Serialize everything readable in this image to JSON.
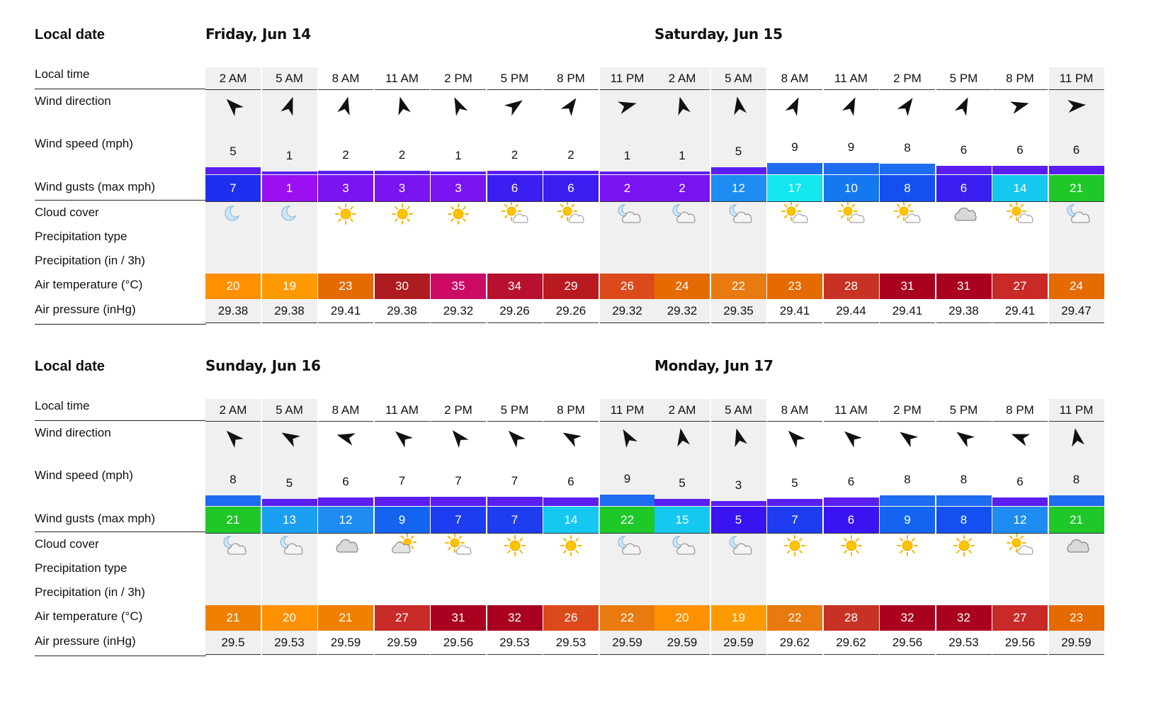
{
  "row_labels": {
    "local_date": "Local date",
    "local_time": "Local time",
    "wind_direction": "Wind direction",
    "wind_speed": "Wind speed (mph)",
    "wind_gusts": "Wind gusts (max mph)",
    "cloud_cover": "Cloud cover",
    "precip_type": "Precipitation type",
    "precip_amount": "Precipitation (in / 3h)",
    "air_temp": "Air temperature (°C)",
    "air_pressure": "Air pressure (inHg)"
  },
  "days": [
    {
      "title": "Friday, Jun 14",
      "columns": [
        {
          "time": "2 AM",
          "night": true,
          "wind_dir_deg": -45,
          "speed": 5,
          "gust": 7,
          "gust_color": "#1e2ff0",
          "cloud": "moon",
          "temp": 20,
          "temp_color": "#ff9000",
          "pressure": "29.38"
        },
        {
          "time": "5 AM",
          "night": true,
          "wind_dir_deg": 20,
          "speed": 1,
          "gust": 1,
          "gust_color": "#9b0ff0",
          "cloud": "moon",
          "temp": 19,
          "temp_color": "#ff9a00",
          "pressure": "29.38"
        },
        {
          "time": "8 AM",
          "night": false,
          "wind_dir_deg": 15,
          "speed": 2,
          "gust": 3,
          "gust_color": "#7a14f0",
          "cloud": "sun",
          "temp": 23,
          "temp_color": "#e56a00",
          "pressure": "29.41"
        },
        {
          "time": "11 AM",
          "night": false,
          "wind_dir_deg": -15,
          "speed": 2,
          "gust": 3,
          "gust_color": "#7a14f0",
          "cloud": "sun",
          "temp": 30,
          "temp_color": "#ad1a1f",
          "pressure": "29.38"
        },
        {
          "time": "2 PM",
          "night": false,
          "wind_dir_deg": -25,
          "speed": 1,
          "gust": 3,
          "gust_color": "#7a14f0",
          "cloud": "sun",
          "temp": 35,
          "temp_color": "#cc0a66",
          "pressure": "29.32"
        },
        {
          "time": "5 PM",
          "night": false,
          "wind_dir_deg": 55,
          "speed": 2,
          "gust": 6,
          "gust_color": "#3a1ff0",
          "cloud": "sun-cloud",
          "temp": 34,
          "temp_color": "#b8102f",
          "pressure": "29.26"
        },
        {
          "time": "8 PM",
          "night": false,
          "wind_dir_deg": 35,
          "speed": 2,
          "gust": 6,
          "gust_color": "#3a1ff0",
          "cloud": "sun-cloud",
          "temp": 29,
          "temp_color": "#b81a20",
          "pressure": "29.26"
        },
        {
          "time": "11 PM",
          "night": true,
          "wind_dir_deg": 75,
          "speed": 1,
          "gust": 2,
          "gust_color": "#7a14f0",
          "cloud": "moon-cloud",
          "temp": 26,
          "temp_color": "#dc4a1c",
          "pressure": "29.32"
        }
      ]
    },
    {
      "title": "Saturday, Jun 15",
      "columns": [
        {
          "time": "2 AM",
          "night": true,
          "wind_dir_deg": -15,
          "speed": 1,
          "gust": 2,
          "gust_color": "#7a14f0",
          "cloud": "moon-cloud",
          "temp": 24,
          "temp_color": "#e56a00",
          "pressure": "29.32"
        },
        {
          "time": "5 AM",
          "night": true,
          "wind_dir_deg": -10,
          "speed": 5,
          "gust": 12,
          "gust_color": "#1e8cf0",
          "cloud": "moon-cloud",
          "temp": 22,
          "temp_color": "#e87a10",
          "pressure": "29.35"
        },
        {
          "time": "8 AM",
          "night": false,
          "wind_dir_deg": 25,
          "speed": 9,
          "gust": 17,
          "gust_color": "#14e6f0",
          "cloud": "sun-cloud",
          "temp": 23,
          "temp_color": "#e56a00",
          "pressure": "29.41"
        },
        {
          "time": "11 AM",
          "night": false,
          "wind_dir_deg": 25,
          "speed": 9,
          "gust": 10,
          "gust_color": "#1478f0",
          "cloud": "sun-cloud",
          "temp": 28,
          "temp_color": "#c83224",
          "pressure": "29.44"
        },
        {
          "time": "2 PM",
          "night": false,
          "wind_dir_deg": 35,
          "speed": 8,
          "gust": 8,
          "gust_color": "#1450f0",
          "cloud": "sun-cloud",
          "temp": 31,
          "temp_color": "#a8001e",
          "pressure": "29.41"
        },
        {
          "time": "5 PM",
          "night": false,
          "wind_dir_deg": 25,
          "speed": 6,
          "gust": 6,
          "gust_color": "#3a1ff0",
          "cloud": "cloud",
          "temp": 31,
          "temp_color": "#a8001e",
          "pressure": "29.38"
        },
        {
          "time": "8 PM",
          "night": false,
          "wind_dir_deg": 75,
          "speed": 6,
          "gust": 14,
          "gust_color": "#14c8f0",
          "cloud": "sun-cloud",
          "temp": 27,
          "temp_color": "#c82a28",
          "pressure": "29.41"
        },
        {
          "time": "11 PM",
          "night": true,
          "wind_dir_deg": 85,
          "speed": 6,
          "gust": 21,
          "gust_color": "#1ec828",
          "cloud": "moon-cloud",
          "temp": 24,
          "temp_color": "#e56a00",
          "pressure": "29.47"
        }
      ]
    },
    {
      "title": "Sunday, Jun 16",
      "columns": [
        {
          "time": "2 AM",
          "night": true,
          "wind_dir_deg": -45,
          "speed": 8,
          "gust": 21,
          "gust_color": "#1ec828",
          "cloud": "moon-cloud",
          "temp": 21,
          "temp_color": "#ef8000",
          "pressure": "29.5"
        },
        {
          "time": "5 AM",
          "night": true,
          "wind_dir_deg": -60,
          "speed": 5,
          "gust": 13,
          "gust_color": "#1aa0f0",
          "cloud": "moon-cloud",
          "temp": 20,
          "temp_color": "#ff9000",
          "pressure": "29.53"
        },
        {
          "time": "8 AM",
          "night": false,
          "wind_dir_deg": -75,
          "speed": 6,
          "gust": 12,
          "gust_color": "#1e8cf0",
          "cloud": "cloud",
          "temp": 21,
          "temp_color": "#ef8000",
          "pressure": "29.59"
        },
        {
          "time": "11 AM",
          "night": false,
          "wind_dir_deg": -50,
          "speed": 7,
          "gust": 9,
          "gust_color": "#1464f0",
          "cloud": "cloud-sun",
          "temp": 27,
          "temp_color": "#c82a28",
          "pressure": "29.59"
        },
        {
          "time": "2 PM",
          "night": false,
          "wind_dir_deg": -40,
          "speed": 7,
          "gust": 7,
          "gust_color": "#1e3cf0",
          "cloud": "sun-cloud",
          "temp": 31,
          "temp_color": "#a8001e",
          "pressure": "29.56"
        },
        {
          "time": "5 PM",
          "night": false,
          "wind_dir_deg": -45,
          "speed": 7,
          "gust": 7,
          "gust_color": "#1e3cf0",
          "cloud": "sun",
          "temp": 32,
          "temp_color": "#a8001e",
          "pressure": "29.53"
        },
        {
          "time": "8 PM",
          "night": false,
          "wind_dir_deg": -60,
          "speed": 6,
          "gust": 14,
          "gust_color": "#14c8f0",
          "cloud": "sun",
          "temp": 26,
          "temp_color": "#dc4a1c",
          "pressure": "29.53"
        },
        {
          "time": "11 PM",
          "night": true,
          "wind_dir_deg": -30,
          "speed": 9,
          "gust": 22,
          "gust_color": "#1ec828",
          "cloud": "moon-cloud",
          "temp": 22,
          "temp_color": "#e87a10",
          "pressure": "29.59"
        }
      ]
    },
    {
      "title": "Monday, Jun 17",
      "columns": [
        {
          "time": "2 AM",
          "night": true,
          "wind_dir_deg": -10,
          "speed": 5,
          "gust": 15,
          "gust_color": "#14c8f0",
          "cloud": "moon-cloud",
          "temp": 20,
          "temp_color": "#ff9000",
          "pressure": "29.59"
        },
        {
          "time": "5 AM",
          "night": true,
          "wind_dir_deg": -15,
          "speed": 3,
          "gust": 5,
          "gust_color": "#3a14f0",
          "cloud": "moon-cloud",
          "temp": 19,
          "temp_color": "#ff9a00",
          "pressure": "29.59"
        },
        {
          "time": "8 AM",
          "night": false,
          "wind_dir_deg": -45,
          "speed": 5,
          "gust": 7,
          "gust_color": "#1e3cf0",
          "cloud": "sun",
          "temp": 22,
          "temp_color": "#e87a10",
          "pressure": "29.62"
        },
        {
          "time": "11 AM",
          "night": false,
          "wind_dir_deg": -50,
          "speed": 6,
          "gust": 6,
          "gust_color": "#3a14f0",
          "cloud": "sun",
          "temp": 28,
          "temp_color": "#c83224",
          "pressure": "29.62"
        },
        {
          "time": "2 PM",
          "night": false,
          "wind_dir_deg": -55,
          "speed": 8,
          "gust": 9,
          "gust_color": "#1464f0",
          "cloud": "sun",
          "temp": 32,
          "temp_color": "#a8001e",
          "pressure": "29.56"
        },
        {
          "time": "5 PM",
          "night": false,
          "wind_dir_deg": -55,
          "speed": 8,
          "gust": 8,
          "gust_color": "#1450f0",
          "cloud": "sun",
          "temp": 32,
          "temp_color": "#a8001e",
          "pressure": "29.53"
        },
        {
          "time": "8 PM",
          "night": false,
          "wind_dir_deg": -70,
          "speed": 6,
          "gust": 12,
          "gust_color": "#1e8cf0",
          "cloud": "sun-cloud",
          "temp": 27,
          "temp_color": "#c82a28",
          "pressure": "29.56"
        },
        {
          "time": "11 PM",
          "night": true,
          "wind_dir_deg": -10,
          "speed": 8,
          "gust": 21,
          "gust_color": "#1ec828",
          "cloud": "cloud",
          "temp": 23,
          "temp_color": "#e56a00",
          "pressure": "29.59"
        }
      ]
    }
  ],
  "colors": {
    "wind_speed_bar_low": "#5a1ff0",
    "wind_speed_bar_high": "#1e6cf0"
  }
}
